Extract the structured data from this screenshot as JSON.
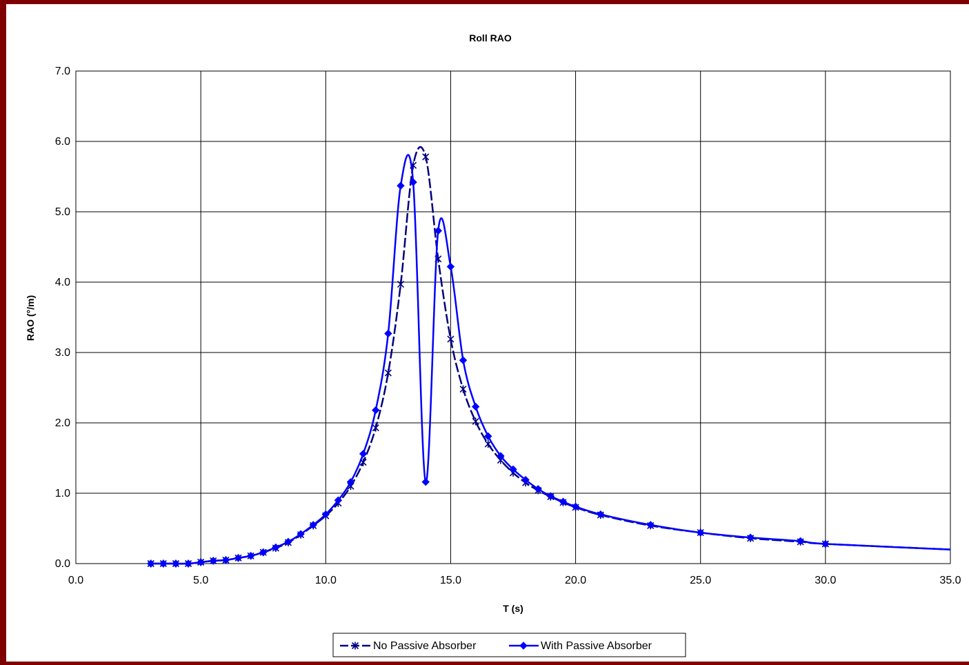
{
  "chart_data": {
    "type": "line",
    "title": "Roll RAO",
    "xlabel": "T (s)",
    "ylabel": "RAO (°/m)",
    "xlim": [
      0,
      35
    ],
    "ylim": [
      0,
      7
    ],
    "x_ticks": [
      "0.0",
      "5.0",
      "10.0",
      "15.0",
      "20.0",
      "25.0",
      "30.0",
      "35.0"
    ],
    "y_ticks": [
      "0.0",
      "1.0",
      "2.0",
      "3.0",
      "4.0",
      "5.0",
      "6.0",
      "7.0"
    ],
    "grid": true,
    "legend_position": "bottom",
    "series": [
      {
        "name": "No Passive Absorber",
        "color": "#000080",
        "marker": "star",
        "x": [
          3.0,
          3.5,
          4.0,
          4.5,
          5.0,
          5.5,
          6.0,
          6.5,
          7.0,
          7.5,
          8.0,
          8.5,
          9.0,
          9.5,
          10.0,
          10.5,
          11.0,
          11.5,
          12.0,
          12.5,
          13.0,
          13.5,
          14.0,
          14.5,
          15.0,
          15.5,
          16.0,
          16.5,
          17.0,
          17.5,
          18.0,
          18.5,
          19.0,
          19.5,
          20.0,
          21.0,
          23.0,
          25.0,
          27.0,
          29.0,
          30.0,
          35.0
        ],
        "y": [
          0.0,
          0.0,
          0.0,
          0.0,
          0.02,
          0.04,
          0.05,
          0.08,
          0.11,
          0.16,
          0.22,
          0.3,
          0.41,
          0.54,
          0.68,
          0.86,
          1.1,
          1.44,
          1.93,
          2.71,
          3.97,
          5.66,
          5.78,
          4.33,
          3.19,
          2.48,
          2.02,
          1.7,
          1.47,
          1.29,
          1.15,
          1.04,
          0.95,
          0.87,
          0.8,
          0.69,
          0.54,
          0.44,
          0.36,
          0.31,
          0.28,
          0.2
        ]
      },
      {
        "name": "With Passive Absorber",
        "color": "#0000ff",
        "marker": "diamond",
        "x": [
          3.0,
          3.5,
          4.0,
          4.5,
          5.0,
          5.5,
          6.0,
          6.5,
          7.0,
          7.5,
          8.0,
          8.5,
          9.0,
          9.5,
          10.0,
          10.5,
          11.0,
          11.5,
          12.0,
          12.5,
          13.0,
          13.5,
          14.0,
          14.5,
          15.0,
          15.5,
          16.0,
          16.5,
          17.0,
          17.5,
          18.0,
          18.5,
          19.0,
          19.5,
          20.0,
          21.0,
          23.0,
          25.0,
          27.0,
          29.0,
          30.0,
          35.0
        ],
        "y": [
          0.0,
          0.0,
          0.0,
          0.0,
          0.02,
          0.04,
          0.05,
          0.08,
          0.11,
          0.16,
          0.23,
          0.31,
          0.42,
          0.55,
          0.7,
          0.9,
          1.16,
          1.56,
          2.18,
          3.27,
          5.37,
          5.42,
          1.16,
          4.73,
          4.22,
          2.89,
          2.23,
          1.81,
          1.53,
          1.34,
          1.19,
          1.06,
          0.96,
          0.88,
          0.81,
          0.7,
          0.55,
          0.44,
          0.37,
          0.32,
          0.28,
          0.2
        ]
      }
    ]
  }
}
